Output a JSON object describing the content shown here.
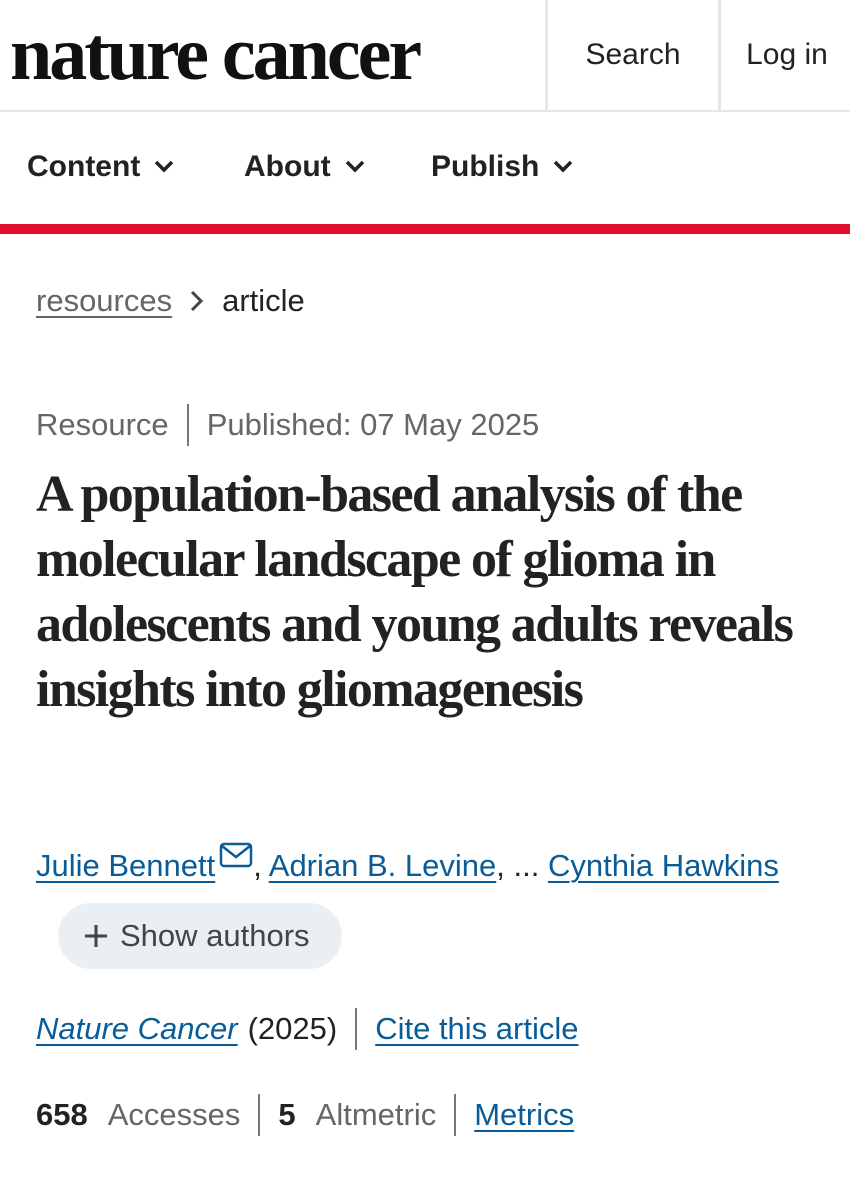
{
  "header": {
    "logo": "nature cancer",
    "search": "Search",
    "login": "Log in"
  },
  "nav": [
    "Content",
    "About",
    "Publish"
  ],
  "breadcrumb": [
    "resources",
    "article"
  ],
  "article": {
    "type": "Resource",
    "published": "Published: 07 May 2025",
    "title": "A population-based analysis of the molecular landscape of glioma in adolescents and young adults reveals insights into gliomagenesis",
    "authors": [
      "Julie Bennett",
      "Adrian B. Levine",
      "Cynthia Hawkins"
    ],
    "author_separator": ",",
    "ellipsis": "...",
    "show_authors": "Show authors",
    "journal": "Nature Cancer",
    "year": "(2025)",
    "cite": "Cite this article",
    "accesses": 658,
    "accesses_label": "Accesses",
    "altmetric": 5,
    "altmetric_label": "Altmetric",
    "metrics_link": "Metrics"
  }
}
